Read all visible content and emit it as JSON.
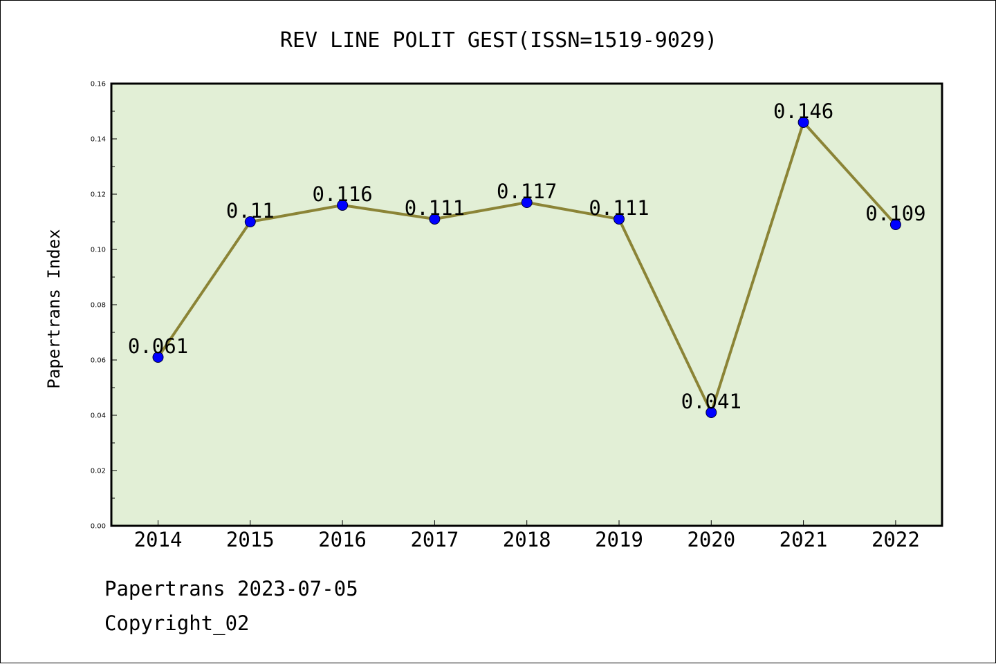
{
  "chart_data": {
    "type": "line",
    "title": "REV LINE POLIT GEST(ISSN=1519-9029)",
    "xlabel": "",
    "ylabel": "Papertrans Index",
    "categories": [
      "2014",
      "2015",
      "2016",
      "2017",
      "2018",
      "2019",
      "2020",
      "2021",
      "2022"
    ],
    "values": [
      0.061,
      0.11,
      0.116,
      0.111,
      0.117,
      0.111,
      0.041,
      0.146,
      0.109
    ],
    "data_labels": [
      "0.061",
      "0.11",
      "0.116",
      "0.111",
      "0.117",
      "0.111",
      "0.041",
      "0.146",
      "0.109"
    ],
    "ylim": [
      0.0,
      0.16
    ],
    "yticks": [
      "0.00",
      "0.02",
      "0.04",
      "0.06",
      "0.08",
      "0.10",
      "0.12",
      "0.14",
      "0.16"
    ],
    "grid": false,
    "colors": {
      "plot_background": "#e2efd6",
      "line": "#8b8436",
      "marker": "#0000ff"
    }
  },
  "footer": {
    "line1": "Papertrans 2023-07-05",
    "line2": "Copyright_02"
  }
}
